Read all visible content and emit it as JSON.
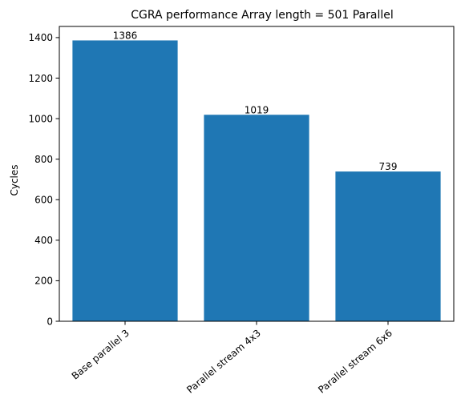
{
  "chart_data": {
    "type": "bar",
    "title": "CGRA performance Array length = 501 Parallel",
    "xlabel": "",
    "ylabel": "Cycles",
    "categories": [
      "Base parallel 3",
      "Parallel stream 4x3",
      "Parallel stream 6x6"
    ],
    "values": [
      1386,
      1019,
      739
    ],
    "data_labels": [
      "1386",
      "1019",
      "739"
    ],
    "ylim": [
      0,
      1455
    ],
    "yticks": [
      0,
      200,
      400,
      600,
      800,
      1000,
      1200,
      1400
    ],
    "ytick_labels": [
      "0",
      "200",
      "400",
      "600",
      "800",
      "1000",
      "1200",
      "1400"
    ],
    "grid": false,
    "bar_color": "#1f77b4",
    "x_tick_rotation_deg": 40
  }
}
